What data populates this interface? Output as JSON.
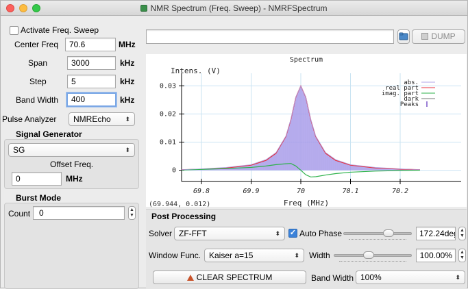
{
  "window": {
    "title": "NMR Spectrum (Freq. Sweep) - NMRFSpectrum"
  },
  "left": {
    "activate_label": "Activate Freq. Sweep",
    "center_freq": {
      "label": "Center Freq",
      "value": "70.6",
      "unit": "MHz"
    },
    "span": {
      "label": "Span",
      "value": "3000",
      "unit": "kHz"
    },
    "step": {
      "label": "Step",
      "value": "5",
      "unit": "kHz"
    },
    "bandwidth": {
      "label": "Band Width",
      "value": "400",
      "unit": "kHz"
    },
    "pulse_analyzer": {
      "label": "Pulse Analyzer",
      "value": "NMREcho"
    },
    "signal_generator": {
      "label": "Signal Generator",
      "value": "SG",
      "offset_label": "Offset Freq.",
      "offset_value": "0",
      "offset_unit": "MHz"
    },
    "burst_mode": {
      "label": "Burst Mode",
      "count_label": "Count",
      "count_value": "0"
    }
  },
  "top": {
    "path_value": "",
    "dump_label": "DUMP"
  },
  "cursor_readout": "(69.944, 0.012)",
  "chart_data": {
    "type": "line",
    "title": "Spectrum",
    "xlabel": "Freq (MHz)",
    "ylabel": "Intens. (V)",
    "xlim": [
      69.76,
      70.24
    ],
    "ylim": [
      -0.004,
      0.033
    ],
    "xticks": [
      "69.8",
      "69.9",
      "70",
      "70.1",
      "70.2"
    ],
    "xtick_values": [
      69.8,
      69.9,
      70.0,
      70.1,
      70.2
    ],
    "yticks": [
      "0",
      "0.01",
      "0.02",
      "0.03"
    ],
    "ytick_values": [
      0,
      0.01,
      0.02,
      0.03
    ],
    "grid": true,
    "legend_position": "top-right",
    "legend": [
      "abs.",
      "real part",
      "imag. part",
      "dark",
      "Peaks"
    ],
    "series": [
      {
        "name": "real part",
        "color": "#e8323c",
        "x": [
          69.76,
          69.8,
          69.85,
          69.9,
          69.93,
          69.95,
          69.97,
          69.98,
          69.99,
          70.0,
          70.01,
          70.02,
          70.03,
          70.05,
          70.07,
          70.1,
          70.15,
          70.2,
          70.24
        ],
        "y": [
          0.0002,
          0.0004,
          0.0008,
          0.0018,
          0.0035,
          0.006,
          0.012,
          0.018,
          0.026,
          0.03,
          0.026,
          0.018,
          0.012,
          0.006,
          0.0035,
          0.0018,
          0.0008,
          0.0004,
          0.0002
        ]
      },
      {
        "name": "imag. part",
        "color": "#2db24a",
        "x": [
          69.76,
          69.8,
          69.85,
          69.9,
          69.93,
          69.95,
          69.97,
          69.98,
          69.99,
          70.0,
          70.01,
          70.02,
          70.03,
          70.05,
          70.07,
          70.1,
          70.15,
          70.2,
          70.24
        ],
        "y": [
          0.0001,
          0.0003,
          0.0006,
          0.001,
          0.0015,
          0.002,
          0.0023,
          0.0024,
          0.0015,
          0.0,
          -0.0016,
          -0.0024,
          -0.0023,
          -0.0017,
          -0.0012,
          -0.0007,
          -0.0003,
          -0.0001,
          0.0
        ]
      },
      {
        "name": "abs.",
        "color": "#b0a6e8",
        "x": [
          69.76,
          69.8,
          69.85,
          69.9,
          69.93,
          69.95,
          69.97,
          69.98,
          69.99,
          70.0,
          70.01,
          70.02,
          70.03,
          70.05,
          70.07,
          70.1,
          70.15,
          70.2,
          70.24
        ],
        "y": [
          0.0002,
          0.0005,
          0.001,
          0.002,
          0.0038,
          0.0063,
          0.0122,
          0.0182,
          0.0261,
          0.03,
          0.0261,
          0.0182,
          0.0122,
          0.0063,
          0.0038,
          0.002,
          0.001,
          0.0005,
          0.0002
        ]
      }
    ]
  },
  "post": {
    "header": "Post Processing",
    "solver_label": "Solver",
    "solver_value": "ZF-FFT",
    "auto_phase_label": "Auto Phase",
    "phase_value": "172.24deg.",
    "phase_fraction": 0.66,
    "window_label": "Window Func.",
    "window_value": "Kaiser a=15",
    "width_label": "Width",
    "width_value": "100.00%",
    "width_fraction": 0.45,
    "clear_label": "CLEAR SPECTRUM",
    "bandwidth_label": "Band Width",
    "bandwidth_value": "100%"
  },
  "colors": {
    "accent": "#3b82d9",
    "real": "#e8323c",
    "imag": "#2db24a",
    "abs_fill": "#9c8fe6"
  }
}
